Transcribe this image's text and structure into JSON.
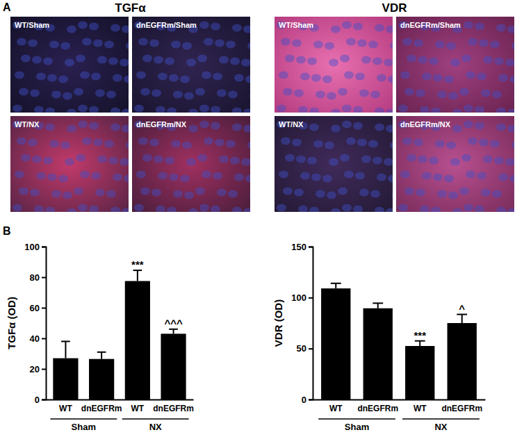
{
  "panel_a": {
    "label": "A",
    "groups": [
      {
        "title": "TGFα",
        "images": [
          "WT/Sham",
          "dnEGFRm/Sham",
          "WT/NX",
          "dnEGFRm/NX"
        ]
      },
      {
        "title": "VDR",
        "images": [
          "WT/Sham",
          "dnEGFRm/Sham",
          "WT/NX",
          "dnEGFRm/NX"
        ]
      }
    ]
  },
  "panel_b": {
    "label": "B"
  },
  "chart_data": [
    {
      "type": "bar",
      "y_label": "TGFα (OD)",
      "categories": [
        "WT",
        "dnEGFRm",
        "WT",
        "dnEGFRm"
      ],
      "values": [
        27,
        26.5,
        77.5,
        43
      ],
      "errors": [
        11,
        4.5,
        7,
        3
      ],
      "annotations": [
        null,
        null,
        "***",
        "^^^"
      ],
      "groups": [
        {
          "label": "Sham",
          "span": [
            0,
            1
          ]
        },
        {
          "label": "NX",
          "span": [
            2,
            3
          ]
        }
      ],
      "color": "#000000",
      "ylim": [
        0,
        100
      ],
      "yticks": [
        0,
        20,
        40,
        60,
        80,
        100
      ]
    },
    {
      "type": "bar",
      "y_label": "VDR (OD)",
      "categories": [
        "WT",
        "dnEGFRm",
        "WT",
        "dnEGFRm"
      ],
      "values": [
        109,
        89.5,
        52.5,
        75
      ],
      "errors": [
        5,
        5,
        5,
        8.5
      ],
      "annotations": [
        null,
        null,
        "***",
        "^"
      ],
      "groups": [
        {
          "label": "Sham",
          "span": [
            0,
            1
          ]
        },
        {
          "label": "NX",
          "span": [
            2,
            3
          ]
        }
      ],
      "color": "#000000",
      "ylim": [
        0,
        150
      ],
      "yticks": [
        0,
        50,
        100,
        150
      ]
    }
  ]
}
